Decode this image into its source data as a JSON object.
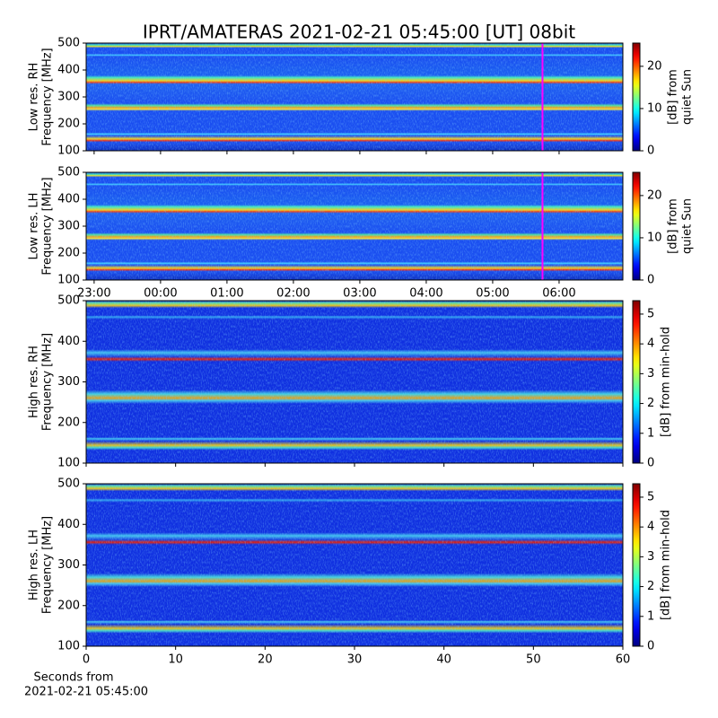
{
  "chart_data": {
    "type": "heatmap",
    "title": "IPRT/AMATERAS 2021-02-21 05:45:00 [UT]   08bit",
    "colormap": "jet",
    "time_xlim": [
      -1.12,
      6.96
    ],
    "time_xticks": [
      {
        "value": -1,
        "label": "23:00"
      },
      {
        "value": 0,
        "label": "00:00"
      },
      {
        "value": 1,
        "label": "01:00"
      },
      {
        "value": 2,
        "label": "02:00"
      },
      {
        "value": 3,
        "label": "03:00"
      },
      {
        "value": 4,
        "label": "04:00"
      },
      {
        "value": 5,
        "label": "05:00"
      },
      {
        "value": 6,
        "label": "06:00"
      }
    ],
    "marker": {
      "value": 5.75,
      "color": "#ff00ff"
    },
    "seconds_xlim": [
      0,
      60
    ],
    "seconds_xticks": [
      0,
      10,
      20,
      30,
      40,
      50,
      60
    ],
    "xlabel": [
      "Seconds from",
      "2021-02-21 05:45:00"
    ],
    "panels": [
      {
        "ylabel": [
          "Low res. RH",
          "Frequency [MHz]"
        ],
        "ylim": [
          100,
          500
        ],
        "yticks": [
          100,
          200,
          300,
          400,
          500
        ],
        "colorbar": {
          "label": [
            "[dB] from",
            "quiet Sun"
          ],
          "lim": [
            0,
            25.5
          ],
          "ticks": [
            0,
            10,
            20
          ]
        }
      },
      {
        "ylabel": [
          "Low res. LH",
          "Frequency [MHz]"
        ],
        "ylim": [
          100,
          500
        ],
        "yticks": [
          100,
          200,
          300,
          400,
          500
        ],
        "colorbar": {
          "label": [
            "[dB] from",
            "quiet Sun"
          ],
          "lim": [
            0,
            25.5
          ],
          "ticks": [
            0,
            10,
            20
          ]
        }
      },
      {
        "ylabel": [
          "High res. RH",
          "Frequency [MHz]"
        ],
        "ylim": [
          100,
          500
        ],
        "yticks": [
          100,
          200,
          300,
          400,
          500
        ],
        "colorbar": {
          "label": [
            "[dB] from min-hold"
          ],
          "lim": [
            0,
            5.45
          ],
          "ticks": [
            0,
            1,
            2,
            3,
            4,
            5
          ]
        }
      },
      {
        "ylabel": [
          "High res. LH",
          "Frequency [MHz]"
        ],
        "ylim": [
          100,
          500
        ],
        "yticks": [
          100,
          200,
          300,
          400,
          500
        ],
        "colorbar": {
          "label": [
            "[dB] from min-hold"
          ],
          "lim": [
            0,
            5.45
          ],
          "ticks": [
            0,
            1,
            2,
            3,
            4,
            5
          ]
        }
      }
    ]
  }
}
